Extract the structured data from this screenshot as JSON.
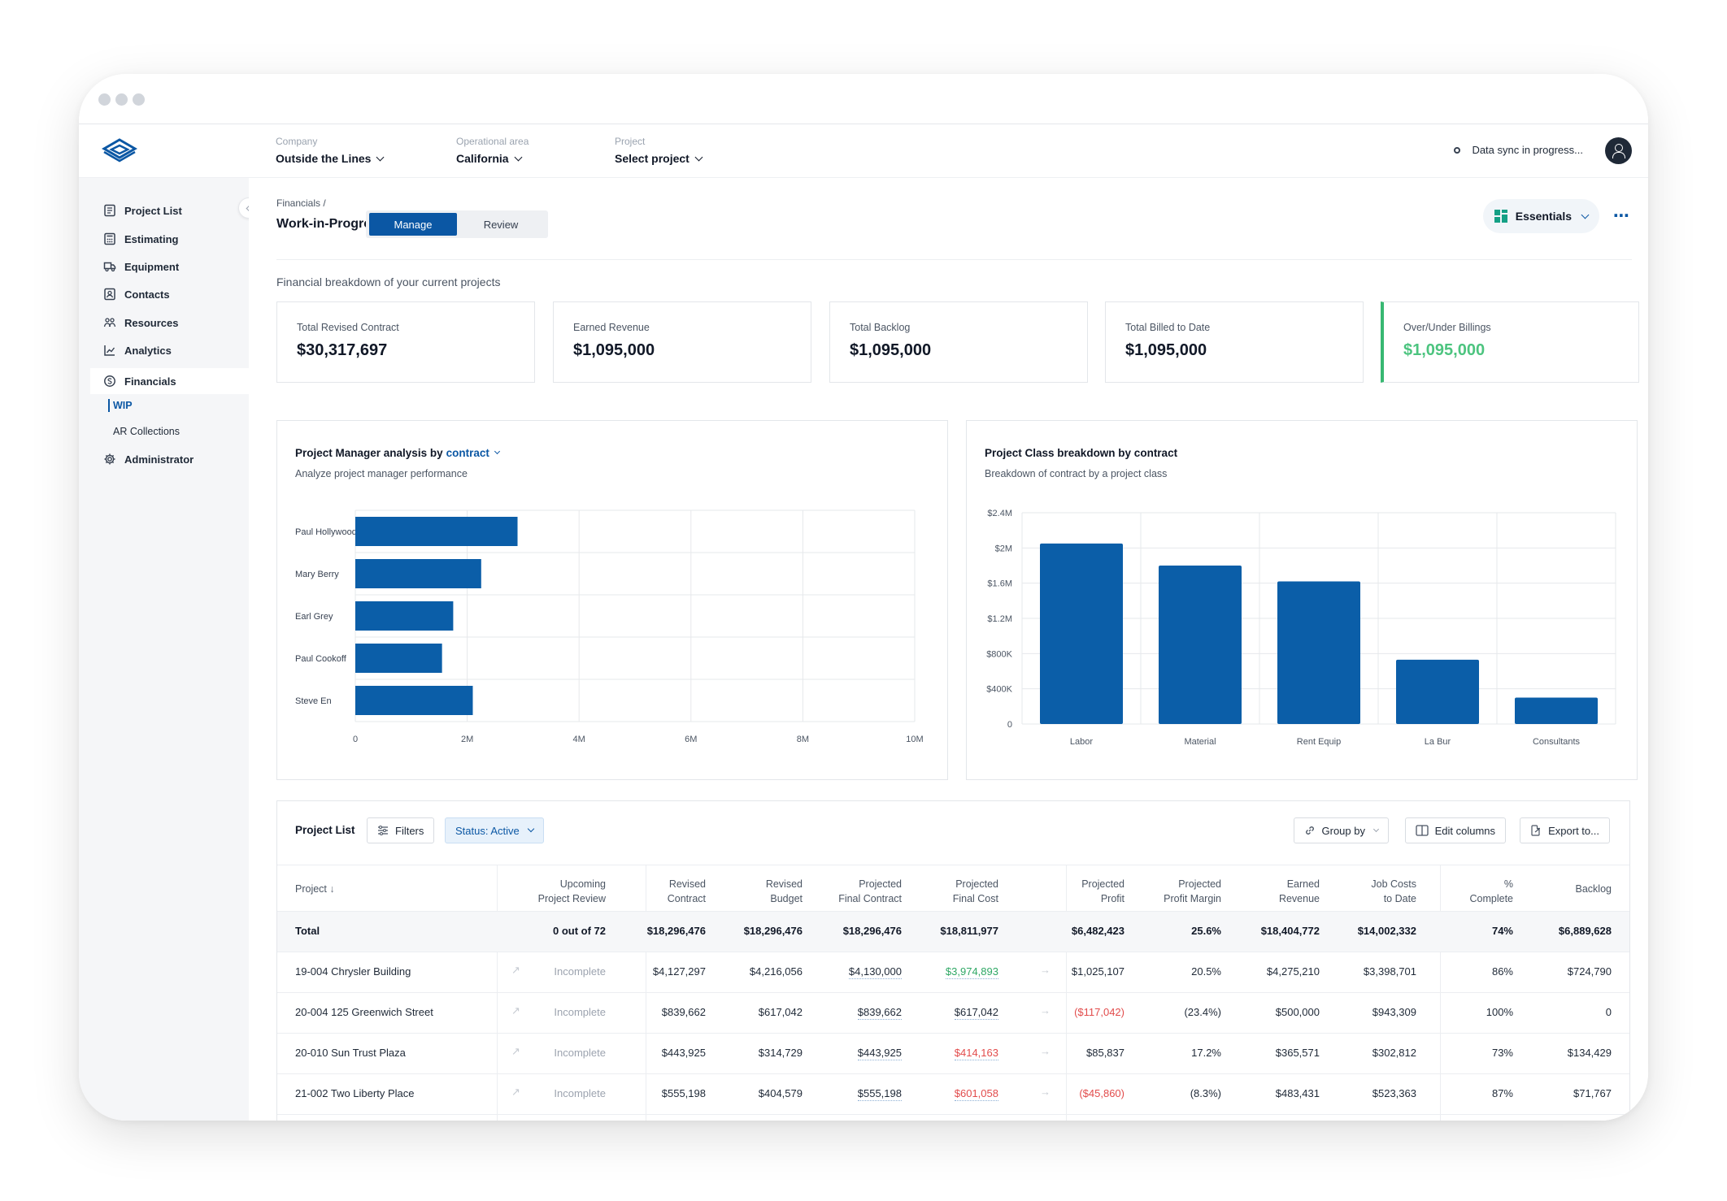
{
  "topbar": {
    "company_label": "Company",
    "company_value": "Outside the Lines",
    "area_label": "Operational area",
    "area_value": "California",
    "project_label": "Project",
    "project_value": "Select project",
    "sync_text": "Data sync in progress..."
  },
  "sidebar": {
    "items": [
      {
        "label": "Project List",
        "icon": "clipboard-list-icon"
      },
      {
        "label": "Estimating",
        "icon": "calculator-icon"
      },
      {
        "label": "Equipment",
        "icon": "truck-icon"
      },
      {
        "label": "Contacts",
        "icon": "contact-card-icon"
      },
      {
        "label": "Resources",
        "icon": "people-icon"
      },
      {
        "label": "Analytics",
        "icon": "chart-icon"
      },
      {
        "label": "Financials",
        "icon": "coin-icon"
      },
      {
        "label": "Administrator",
        "icon": "gear-icon"
      }
    ],
    "sub_items": [
      "WIP",
      "AR Collections"
    ]
  },
  "header": {
    "breadcrumb": "Financials /",
    "title": "Work-in-Progress",
    "tab_manage": "Manage",
    "tab_review": "Review",
    "essentials": "Essentials",
    "subtitle": "Financial breakdown of your current projects"
  },
  "kpis": [
    {
      "label": "Total Revised Contract",
      "value": "$30,317,697"
    },
    {
      "label": "Earned Revenue",
      "value": "$1,095,000"
    },
    {
      "label": "Total Backlog",
      "value": "$1,095,000"
    },
    {
      "label": "Total Billed to Date",
      "value": "$1,095,000"
    },
    {
      "label": "Over/Under Billings",
      "value": "$1,095,000",
      "color": "#4cc47f"
    }
  ],
  "chart_data": [
    {
      "type": "bar",
      "orientation": "horizontal",
      "title_prefix": "Project Manager analysis by",
      "title_accent": "contract",
      "subtitle": "Analyze project manager performance",
      "categories": [
        "Paul Hollywood",
        "Mary Berry",
        "Earl Grey",
        "Paul Cookoff",
        "Steve En"
      ],
      "values": [
        2.9,
        2.25,
        1.75,
        1.55,
        2.1
      ],
      "xlim": [
        0,
        10
      ],
      "x_ticks": [
        "0",
        "2M",
        "4M",
        "6M",
        "8M",
        "10M"
      ],
      "grid": true,
      "color": "#0b5ea8"
    },
    {
      "type": "bar",
      "title": "Project Class breakdown by contract",
      "subtitle": "Breakdown of contract by a project class",
      "categories": [
        "Labor",
        "Material",
        "Rent Equip",
        "La Bur",
        "Consultants"
      ],
      "values": [
        2.05,
        1.8,
        1.62,
        0.73,
        0.3
      ],
      "ylim": [
        0,
        2.4
      ],
      "y_ticks": [
        "0",
        "$400K",
        "$800K",
        "$1.2M",
        "$1.6M",
        "$2M",
        "$2.4M"
      ],
      "grid": true,
      "color": "#0b5ea8"
    }
  ],
  "project_list": {
    "title": "Project List",
    "filters": "Filters",
    "status": "Status: Active",
    "group_by": "Group by",
    "edit_columns": "Edit columns",
    "export": "Export to...",
    "columns": [
      "Project",
      "Upcoming\nProject Review",
      "Revised\nContract",
      "Revised\nBudget",
      "Projected\nFinal Contract",
      "Projected\nFinal Cost",
      "Projected\nProfit",
      "Projected\nProfit Margin",
      "Earned\nRevenue",
      "Job Costs\nto Date",
      "%\nComplete",
      "Backlog"
    ],
    "total": [
      "Total",
      "0 out of 72",
      "$18,296,476",
      "$18,296,476",
      "$18,296,476",
      "$18,811,977",
      "$6,482,423",
      "25.6%",
      "$18,404,772",
      "$14,002,332",
      "74%",
      "$6,889,628"
    ],
    "rows": [
      [
        "19-004 Chrysler Building",
        "Incomplete",
        "$4,127,297",
        "$4,216,056",
        "$4,130,000",
        "$3,974,893",
        "$1,025,107",
        "20.5%",
        "$4,275,210",
        "$3,398,701",
        "86%",
        "$724,790"
      ],
      [
        "20-004 125 Greenwich Street",
        "Incomplete",
        "$839,662",
        "$617,042",
        "$839,662",
        "$617,042",
        "($117,042)",
        "(23.4%)",
        "$500,000",
        "$943,309",
        "100%",
        "0"
      ],
      [
        "20-010 Sun Trust Plaza",
        "Incomplete",
        "$443,925",
        "$314,729",
        "$443,925",
        "$414,163",
        "$85,837",
        "17.2%",
        "$365,571",
        "$302,812",
        "73%",
        "$134,429"
      ],
      [
        "21-002 Two Liberty Place",
        "Incomplete",
        "$555,198",
        "$404,579",
        "$555,198",
        "$601,058",
        "($45,860)",
        "(8.3%)",
        "$483,431",
        "$523,363",
        "87%",
        "$71,767"
      ]
    ],
    "cost_colors": [
      "green",
      "none",
      "red",
      "red"
    ],
    "profit_colors": [
      "none",
      "red",
      "none",
      "red"
    ]
  }
}
